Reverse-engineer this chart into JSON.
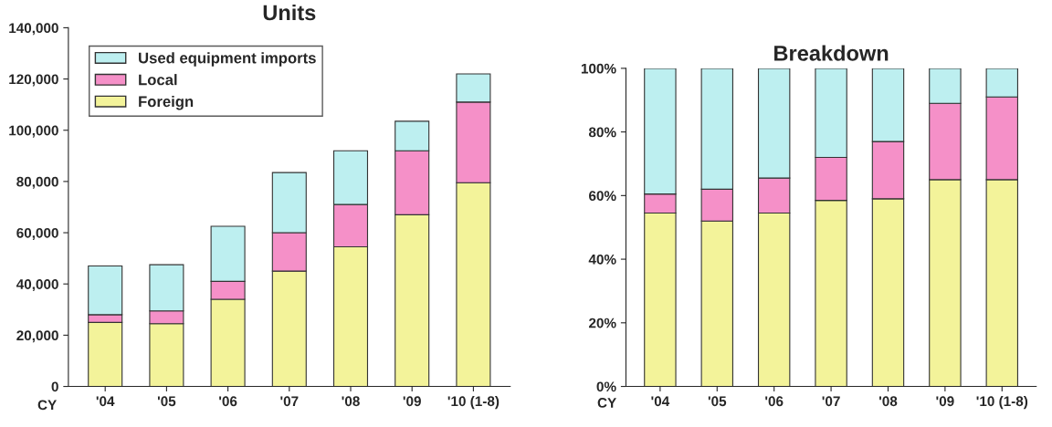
{
  "chart_data": [
    {
      "type": "bar",
      "title": "Units",
      "stacked": true,
      "categories": [
        "'04",
        "'05",
        "'06",
        "'07",
        "'08",
        "'09",
        "'10 (1-8)"
      ],
      "series": [
        {
          "name": "Foreign",
          "color": "#f3f39a",
          "values": [
            25000,
            24500,
            34000,
            45000,
            54500,
            67000,
            79500
          ]
        },
        {
          "name": "Local",
          "color": "#f590c8",
          "values": [
            3000,
            5000,
            7000,
            15000,
            16500,
            25000,
            31500
          ]
        },
        {
          "name": "Used equipment imports",
          "color": "#bdeff0",
          "values": [
            19000,
            18000,
            21500,
            23500,
            21000,
            11500,
            11000
          ]
        }
      ],
      "ylim": [
        0,
        140000
      ],
      "yticks": [
        0,
        {
          "value": 20000,
          "label": "20,000"
        },
        {
          "value": 40000,
          "label": "40,000"
        },
        {
          "value": 60000,
          "label": "60,000"
        },
        {
          "value": 80000,
          "label": "80,000"
        },
        {
          "value": 100000,
          "label": "100,000"
        },
        {
          "value": 120000,
          "label": "120,000"
        },
        {
          "value": 140000,
          "label": "140,000"
        }
      ],
      "legend": "top left",
      "grid": false,
      "annotations": [
        "CY"
      ]
    },
    {
      "type": "bar",
      "title": "Breakdown",
      "stacked": true,
      "categories": [
        "'04",
        "'05",
        "'06",
        "'07",
        "'08",
        "'09",
        "'10 (1-8)"
      ],
      "series": [
        {
          "color": "#f3f39a",
          "values": [
            54.5,
            52,
            54.5,
            58.5,
            59,
            65,
            65
          ]
        },
        {
          "color": "#f590c8",
          "values": [
            6,
            10,
            11,
            13.5,
            18,
            24,
            26
          ]
        },
        {
          "color": "#bdeff0",
          "values": [
            39.5,
            38,
            34.5,
            28,
            23,
            11,
            9
          ]
        }
      ],
      "ylim": [
        0,
        100
      ],
      "yticks": [
        {
          "value": 0,
          "label": "0%"
        },
        {
          "value": 20,
          "label": "20%"
        },
        {
          "value": 40,
          "label": "40%"
        },
        {
          "value": 60,
          "label": "60%"
        },
        {
          "value": 80,
          "label": "80%"
        },
        {
          "value": 100,
          "label": "100%"
        }
      ],
      "legend": false,
      "grid": false,
      "annotations": [
        "CY"
      ]
    }
  ]
}
